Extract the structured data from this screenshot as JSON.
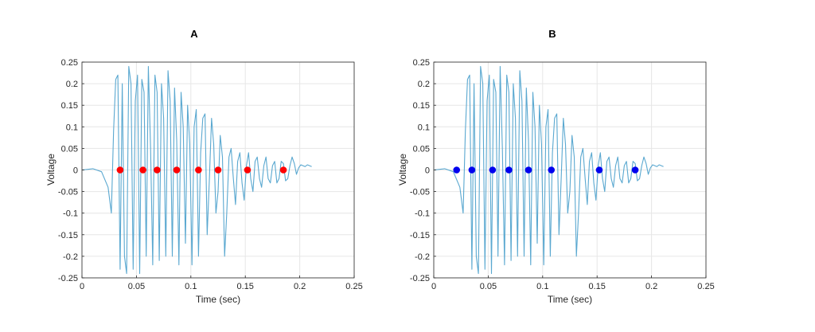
{
  "chart_data": [
    {
      "type": "line",
      "title": "A",
      "xlabel": "Time (sec)",
      "ylabel": "Voltage",
      "xlim": [
        0,
        0.25
      ],
      "ylim": [
        -0.25,
        0.25
      ],
      "grid": true,
      "x_ticks": [
        "0",
        "0.05",
        "0.1",
        "0.15",
        "0.2",
        "0.25"
      ],
      "y_ticks": [
        "-0.25",
        "-0.2",
        "-0.15",
        "-0.1",
        "-0.05",
        "0",
        "0.05",
        "0.1",
        "0.15",
        "0.2",
        "0.25"
      ],
      "series": [
        {
          "name": "signal",
          "color": "#5aa8d0",
          "x": [
            0,
            0.01,
            0.018,
            0.024,
            0.027,
            0.029,
            0.031,
            0.033,
            0.035,
            0.037,
            0.039,
            0.041,
            0.043,
            0.045,
            0.047,
            0.049,
            0.051,
            0.053,
            0.055,
            0.057,
            0.059,
            0.061,
            0.063,
            0.065,
            0.067,
            0.069,
            0.071,
            0.073,
            0.075,
            0.077,
            0.079,
            0.081,
            0.083,
            0.085,
            0.087,
            0.089,
            0.091,
            0.093,
            0.095,
            0.097,
            0.099,
            0.101,
            0.103,
            0.105,
            0.107,
            0.109,
            0.111,
            0.113,
            0.115,
            0.117,
            0.119,
            0.121,
            0.123,
            0.125,
            0.127,
            0.129,
            0.131,
            0.133,
            0.135,
            0.137,
            0.139,
            0.141,
            0.143,
            0.145,
            0.147,
            0.149,
            0.151,
            0.153,
            0.155,
            0.157,
            0.159,
            0.161,
            0.163,
            0.165,
            0.167,
            0.169,
            0.171,
            0.173,
            0.175,
            0.177,
            0.179,
            0.181,
            0.183,
            0.185,
            0.187,
            0.189,
            0.191,
            0.193,
            0.195,
            0.197,
            0.199,
            0.201,
            0.203,
            0.205,
            0.207,
            0.209,
            0.211
          ],
          "values": [
            0,
            0.003,
            -0.004,
            -0.04,
            -0.1,
            0.09,
            0.21,
            0.22,
            -0.23,
            0.2,
            -0.2,
            -0.24,
            0.24,
            0.2,
            -0.23,
            0.16,
            0.22,
            -0.24,
            0.21,
            0.18,
            -0.2,
            0.24,
            0.05,
            -0.22,
            0.22,
            0.18,
            -0.21,
            0.2,
            0.12,
            -0.2,
            0.23,
            0.16,
            -0.2,
            0.19,
            0.07,
            -0.22,
            0.18,
            0.1,
            -0.17,
            0.15,
            0.06,
            -0.22,
            0.1,
            0.14,
            -0.2,
            0.04,
            0.12,
            0.13,
            -0.15,
            -0.02,
            0.12,
            0.06,
            -0.1,
            -0.05,
            0.08,
            0.03,
            -0.2,
            -0.1,
            0.03,
            0.05,
            -0.02,
            -0.08,
            0.02,
            0.04,
            -0.03,
            -0.07,
            0.01,
            0.04,
            -0.02,
            -0.05,
            0.02,
            0.03,
            -0.02,
            -0.04,
            0.01,
            0.03,
            -0.02,
            -0.03,
            0.01,
            0.02,
            -0.03,
            -0.02,
            0.02,
            0.015,
            -0.025,
            -0.02,
            0.01,
            0.03,
            0.015,
            -0.01,
            0.005,
            0.012,
            0.01,
            0.008,
            0.012,
            0.01,
            0.008
          ]
        }
      ],
      "markers": {
        "color": "#ff0000",
        "x": [
          0.035,
          0.056,
          0.069,
          0.087,
          0.107,
          0.125,
          0.152,
          0.185
        ],
        "y": [
          0,
          0,
          0,
          0,
          0,
          0,
          0,
          0
        ]
      }
    },
    {
      "type": "line",
      "title": "B",
      "xlabel": "Time (sec)",
      "ylabel": "Voltage",
      "xlim": [
        0,
        0.25
      ],
      "ylim": [
        -0.25,
        0.25
      ],
      "grid": true,
      "x_ticks": [
        "0",
        "0.05",
        "0.1",
        "0.15",
        "0.2",
        "0.25"
      ],
      "y_ticks": [
        "-0.25",
        "-0.2",
        "-0.15",
        "-0.1",
        "-0.05",
        "0",
        "0.05",
        "0.1",
        "0.15",
        "0.2",
        "0.25"
      ],
      "series": [
        {
          "name": "signal",
          "color": "#5aa8d0",
          "x": [
            0,
            0.01,
            0.018,
            0.024,
            0.027,
            0.029,
            0.031,
            0.033,
            0.035,
            0.037,
            0.039,
            0.041,
            0.043,
            0.045,
            0.047,
            0.049,
            0.051,
            0.053,
            0.055,
            0.057,
            0.059,
            0.061,
            0.063,
            0.065,
            0.067,
            0.069,
            0.071,
            0.073,
            0.075,
            0.077,
            0.079,
            0.081,
            0.083,
            0.085,
            0.087,
            0.089,
            0.091,
            0.093,
            0.095,
            0.097,
            0.099,
            0.101,
            0.103,
            0.105,
            0.107,
            0.109,
            0.111,
            0.113,
            0.115,
            0.117,
            0.119,
            0.121,
            0.123,
            0.125,
            0.127,
            0.129,
            0.131,
            0.133,
            0.135,
            0.137,
            0.139,
            0.141,
            0.143,
            0.145,
            0.147,
            0.149,
            0.151,
            0.153,
            0.155,
            0.157,
            0.159,
            0.161,
            0.163,
            0.165,
            0.167,
            0.169,
            0.171,
            0.173,
            0.175,
            0.177,
            0.179,
            0.181,
            0.183,
            0.185,
            0.187,
            0.189,
            0.191,
            0.193,
            0.195,
            0.197,
            0.199,
            0.201,
            0.203,
            0.205,
            0.207,
            0.209,
            0.211
          ],
          "values": [
            0,
            0.003,
            -0.004,
            -0.04,
            -0.1,
            0.09,
            0.21,
            0.22,
            -0.23,
            0.2,
            -0.2,
            -0.24,
            0.24,
            0.2,
            -0.23,
            0.16,
            0.22,
            -0.24,
            0.21,
            0.18,
            -0.2,
            0.24,
            0.05,
            -0.22,
            0.22,
            0.18,
            -0.21,
            0.2,
            0.12,
            -0.2,
            0.23,
            0.16,
            -0.2,
            0.19,
            0.07,
            -0.22,
            0.18,
            0.1,
            -0.17,
            0.15,
            0.06,
            -0.22,
            0.1,
            0.14,
            -0.2,
            0.04,
            0.12,
            0.13,
            -0.15,
            -0.02,
            0.12,
            0.06,
            -0.1,
            -0.05,
            0.08,
            0.03,
            -0.2,
            -0.1,
            0.03,
            0.05,
            -0.02,
            -0.08,
            0.02,
            0.04,
            -0.03,
            -0.07,
            0.01,
            0.04,
            -0.02,
            -0.05,
            0.02,
            0.03,
            -0.02,
            -0.04,
            0.01,
            0.03,
            -0.02,
            -0.03,
            0.01,
            0.02,
            -0.03,
            -0.02,
            0.02,
            0.015,
            -0.025,
            -0.02,
            0.01,
            0.03,
            0.015,
            -0.01,
            0.005,
            0.012,
            0.01,
            0.008,
            0.012,
            0.01,
            0.008
          ]
        }
      ],
      "markers": {
        "color": "#0000ee",
        "x": [
          0.021,
          0.035,
          0.054,
          0.069,
          0.087,
          0.108,
          0.152,
          0.185
        ],
        "y": [
          0,
          0,
          0,
          0,
          0,
          0,
          0,
          0
        ]
      }
    }
  ]
}
